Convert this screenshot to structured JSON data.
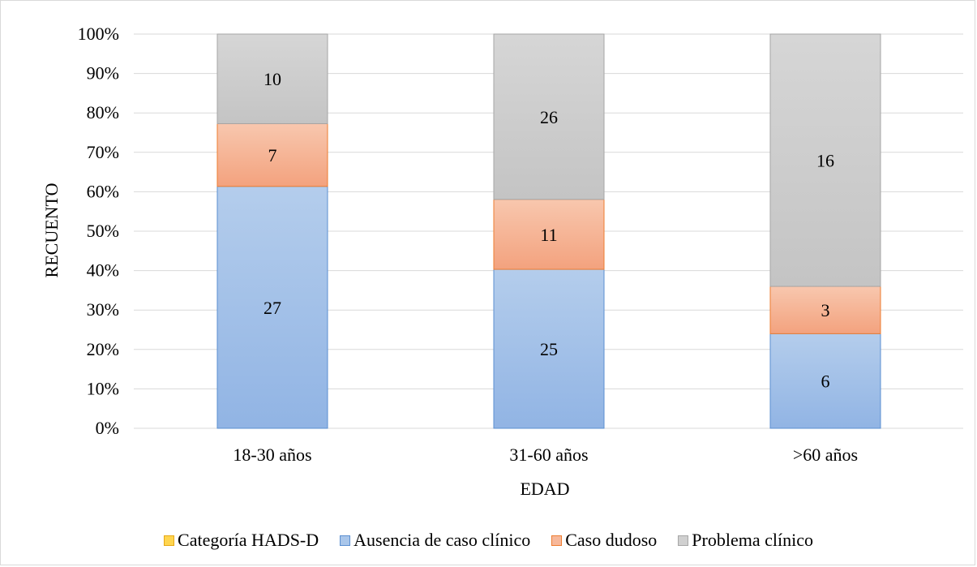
{
  "chart_data": {
    "type": "bar",
    "stacked": "percent",
    "title": "",
    "xlabel": "EDAD",
    "ylabel": "RECUENTO",
    "categories": [
      "18-30 años",
      "31-60 años",
      ">60 años"
    ],
    "y_ticks": [
      "0%",
      "10%",
      "20%",
      "30%",
      "40%",
      "50%",
      "60%",
      "70%",
      "80%",
      "90%",
      "100%"
    ],
    "ylim": [
      0,
      100
    ],
    "grid": true,
    "legend_position": "bottom",
    "legend": [
      {
        "name": "Categoría HADS-D",
        "fill": "#ffd54f",
        "stroke": "#e6a817"
      },
      {
        "name": "Ausencia de caso clínico",
        "fill": "#a9c6ea",
        "stroke": "#5b8fd1"
      },
      {
        "name": "Caso dudoso",
        "fill": "#f7b89a",
        "stroke": "#ed7d31"
      },
      {
        "name": "Problema clínico",
        "fill": "#d0d0d0",
        "stroke": "#a6a6a6"
      }
    ],
    "series": [
      {
        "name": "Ausencia de caso clínico",
        "values": [
          27,
          25,
          6
        ],
        "fill_top": "#b4cdec",
        "fill_bottom": "#91b4e4",
        "stroke": "#5b8fd1"
      },
      {
        "name": "Caso dudoso",
        "values": [
          7,
          11,
          3
        ],
        "fill_top": "#f8c7ae",
        "fill_bottom": "#f3a27e",
        "stroke": "#ed7d31"
      },
      {
        "name": "Problema clínico",
        "values": [
          10,
          26,
          16
        ],
        "fill_top": "#d6d6d6",
        "fill_bottom": "#c4c4c4",
        "stroke": "#a6a6a6"
      }
    ]
  }
}
